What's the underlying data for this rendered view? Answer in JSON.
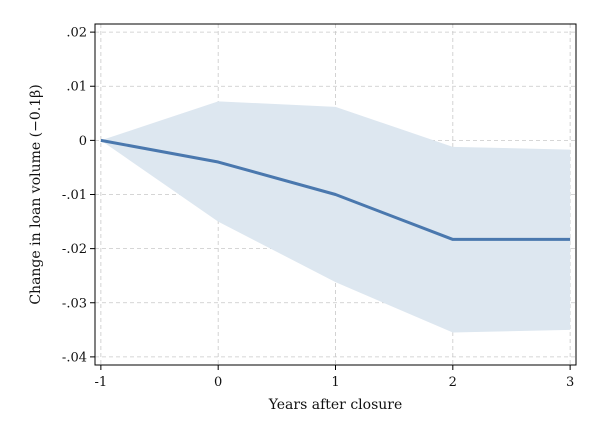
{
  "chart_data": {
    "type": "line",
    "title": "",
    "xlabel": "Years after closure",
    "ylabel": "Change in loan volume (−0.1β)",
    "x": [
      -1,
      0,
      1,
      2,
      3
    ],
    "series": [
      {
        "values": [
          0,
          -0.004,
          -0.01,
          -0.0183,
          -0.0183
        ]
      }
    ],
    "confidence_band": {
      "upper": [
        0,
        0.0072,
        0.0062,
        -0.0012,
        -0.0017
      ],
      "lower": [
        0,
        -0.015,
        -0.0262,
        -0.0355,
        -0.035
      ]
    },
    "xticks": [
      -1,
      0,
      1,
      2,
      3
    ],
    "xtick_labels": [
      "-1",
      "0",
      "1",
      "2",
      "3"
    ],
    "yticks": [
      0.02,
      0.01,
      0,
      -0.01,
      -0.02,
      -0.03,
      -0.04
    ],
    "ytick_labels": [
      ".02",
      ".01",
      "0",
      "-.01",
      "-.02",
      "-.03",
      "-.04"
    ],
    "xlim": [
      -1.05,
      3.05
    ],
    "ylim": [
      -0.0415,
      0.0215
    ],
    "grid": true,
    "colors": {
      "line": "#4a78ae",
      "band": "#dde7f0"
    }
  }
}
